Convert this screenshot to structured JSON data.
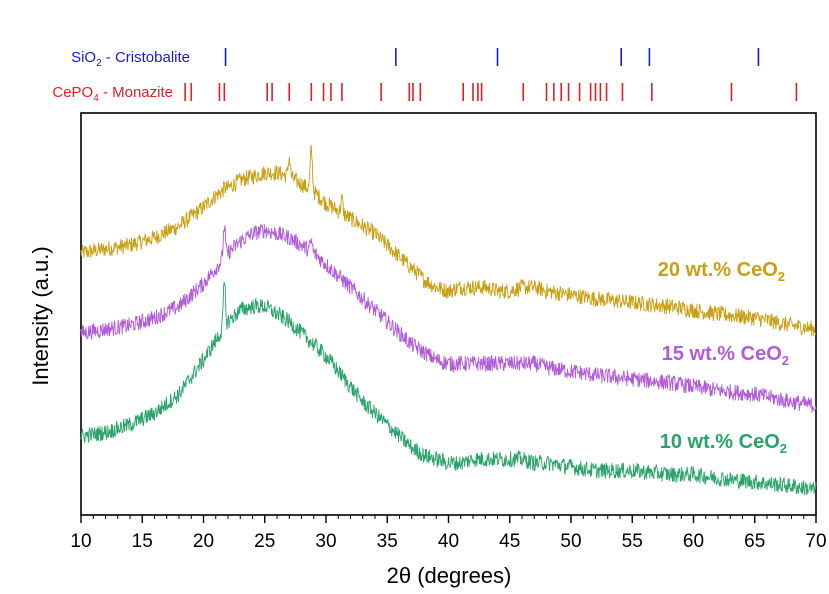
{
  "chart_data": {
    "type": "line",
    "xlabel": "2θ (degrees)",
    "ylabel": "Intensity (a.u.)",
    "xlim": [
      10,
      70
    ],
    "ylim": [
      0,
      100
    ],
    "xticks": [
      10,
      15,
      20,
      25,
      30,
      35,
      40,
      45,
      50,
      55,
      60,
      65,
      70
    ],
    "grid": false,
    "reference_patterns": [
      {
        "name_main": "SiO",
        "name_sub": "2",
        "name_rest": " - Cristobalite",
        "color": "#1a1ad6",
        "positions": [
          21.8,
          35.7,
          44.0,
          54.1,
          56.4,
          65.3
        ]
      },
      {
        "name_main": "CePO",
        "name_sub": "4",
        "name_rest": " - Monazite",
        "color": "#e02020",
        "positions": [
          18.5,
          19.0,
          21.3,
          21.7,
          25.2,
          25.6,
          27.0,
          28.8,
          29.8,
          30.4,
          31.3,
          34.5,
          36.8,
          37.1,
          37.7,
          41.2,
          42.0,
          42.4,
          42.7,
          46.1,
          48.0,
          48.6,
          49.2,
          49.8,
          50.7,
          51.6,
          52.0,
          52.4,
          52.9,
          54.2,
          56.6,
          63.1,
          68.4
        ]
      }
    ],
    "series": [
      {
        "name_main": "20 wt.% CeO",
        "name_sub": "2",
        "color": "#c9a015",
        "x": [
          10,
          12,
          14,
          16,
          18,
          20,
          21,
          22,
          23,
          24,
          25,
          26,
          27,
          28,
          29,
          30,
          31,
          32,
          33,
          34,
          35,
          36,
          37,
          38,
          39,
          40,
          41,
          42,
          43,
          44,
          45,
          46,
          47,
          48,
          50,
          52,
          55,
          58,
          60,
          62,
          65,
          68,
          70
        ],
        "y": [
          66,
          67,
          68,
          70,
          73,
          78,
          81,
          83,
          85,
          86,
          87,
          87,
          86,
          84,
          82,
          79,
          77,
          75,
          73,
          71,
          68,
          65,
          62,
          59,
          57,
          56,
          57,
          57,
          57,
          56,
          56,
          57,
          57,
          56,
          55,
          54,
          53,
          52,
          51,
          50,
          49,
          47,
          46
        ],
        "peaks": [
          [
            27.0,
            91
          ],
          [
            28.8,
            93
          ],
          [
            31.3,
            80
          ],
          [
            21.7,
            83
          ]
        ]
      },
      {
        "name_main": "15 wt.% CeO",
        "name_sub": "2",
        "color": "#b05cd8",
        "x": [
          10,
          12,
          14,
          16,
          18,
          20,
          21,
          22,
          23,
          24,
          25,
          26,
          27,
          28,
          29,
          30,
          31,
          32,
          33,
          34,
          35,
          36,
          37,
          38,
          39,
          40,
          41,
          42,
          43,
          44,
          45,
          46,
          47,
          48,
          50,
          52,
          55,
          58,
          60,
          62,
          65,
          68,
          70
        ],
        "y": [
          45,
          46,
          47,
          49,
          52,
          58,
          62,
          66,
          69,
          71,
          72,
          71,
          70,
          68,
          66,
          63,
          60,
          57,
          54,
          51,
          48,
          45,
          42,
          40,
          38,
          37,
          37,
          37,
          37,
          37,
          37,
          37,
          37,
          36,
          35,
          34,
          33,
          32,
          31,
          30,
          29,
          27,
          26
        ],
        "peaks": [
          [
            21.7,
            73
          ],
          [
            28.8,
            69
          ]
        ]
      },
      {
        "name_main": "10 wt.% CeO",
        "name_sub": "2",
        "color": "#2aa36a",
        "x": [
          10,
          12,
          14,
          16,
          18,
          20,
          21,
          22,
          23,
          24,
          25,
          26,
          27,
          28,
          29,
          30,
          31,
          32,
          33,
          34,
          35,
          36,
          37,
          38,
          39,
          40,
          41,
          42,
          43,
          44,
          45,
          46,
          47,
          48,
          50,
          52,
          55,
          58,
          60,
          62,
          65,
          68,
          70
        ],
        "y": [
          18,
          19,
          21,
          24,
          29,
          38,
          43,
          48,
          51,
          52,
          52,
          50,
          48,
          45,
          42,
          39,
          35,
          31,
          27,
          24,
          21,
          18,
          15,
          13,
          12,
          11,
          11,
          12,
          12,
          12,
          12,
          12,
          11,
          11,
          10,
          9,
          9,
          8,
          8,
          7,
          6,
          5,
          4
        ],
        "peaks": [
          [
            21.7,
            58
          ]
        ]
      }
    ]
  }
}
